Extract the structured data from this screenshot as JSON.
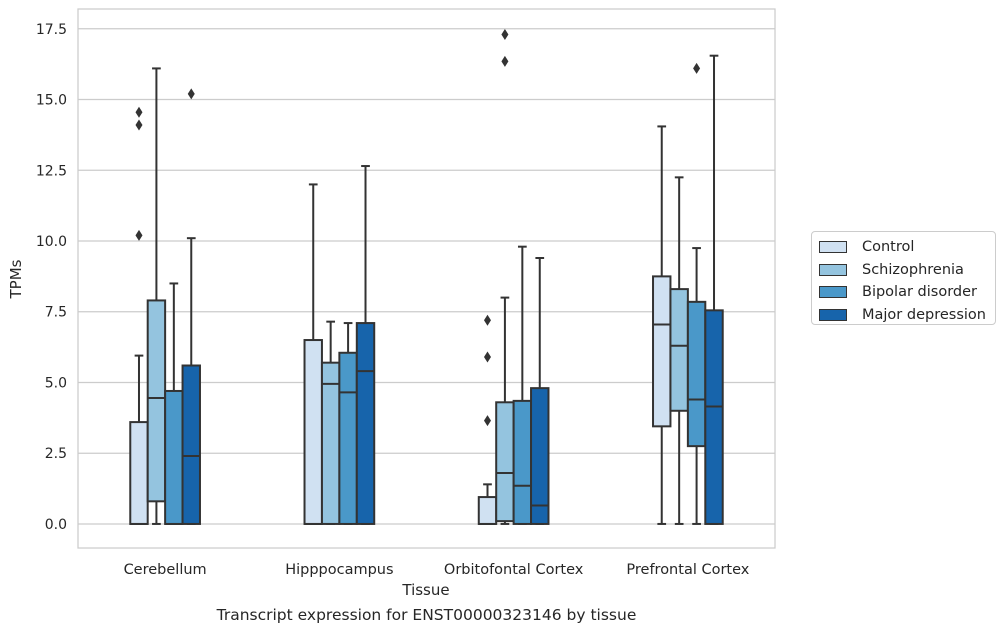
{
  "chart_data": {
    "type": "box",
    "xlabel": "Tissue",
    "ylabel": "TPMs",
    "ylim": [
      -0.85,
      18.2
    ],
    "yticks": [
      0.0,
      2.5,
      5.0,
      7.5,
      10.0,
      12.5,
      15.0,
      17.5
    ],
    "ytick_labels": [
      "0.0",
      "2.5",
      "5.0",
      "7.5",
      "10.0",
      "12.5",
      "15.0",
      "17.5"
    ],
    "grid": "horizontal",
    "legend_position": "outside-right",
    "categories": [
      "Cerebellum",
      "Hipppocampus",
      "Orbitofontal Cortex",
      "Prefrontal Cortex"
    ],
    "series": [
      {
        "name": "Control",
        "color": "#d0e1f2",
        "boxes": [
          {
            "whislo": 0.0,
            "q1": 0.0,
            "med": 0.0,
            "q3": 3.6,
            "whishi": 5.95,
            "fliers": [
              10.2,
              14.1,
              14.55
            ]
          },
          {
            "whislo": 0.0,
            "q1": 0.0,
            "med": 0.0,
            "q3": 6.5,
            "whishi": 12.0,
            "fliers": []
          },
          {
            "whislo": 0.0,
            "q1": 0.0,
            "med": 0.0,
            "q3": 0.95,
            "whishi": 1.4,
            "fliers": [
              3.65,
              5.9,
              7.2
            ]
          },
          {
            "whislo": 0.0,
            "q1": 3.45,
            "med": 7.05,
            "q3": 8.75,
            "whishi": 14.05,
            "fliers": []
          }
        ]
      },
      {
        "name": "Schizophrenia",
        "color": "#94c4df",
        "boxes": [
          {
            "whislo": 0.0,
            "q1": 0.8,
            "med": 4.45,
            "q3": 7.9,
            "whishi": 16.1,
            "fliers": []
          },
          {
            "whislo": 0.0,
            "q1": 0.0,
            "med": 4.95,
            "q3": 5.7,
            "whishi": 7.15,
            "fliers": []
          },
          {
            "whislo": 0.0,
            "q1": 0.1,
            "med": 1.8,
            "q3": 4.3,
            "whishi": 8.0,
            "fliers": [
              16.35,
              17.3
            ]
          },
          {
            "whislo": 0.0,
            "q1": 4.0,
            "med": 6.3,
            "q3": 8.3,
            "whishi": 12.25,
            "fliers": []
          }
        ]
      },
      {
        "name": "Bipolar disorder",
        "color": "#4a98c9",
        "boxes": [
          {
            "whislo": 0.0,
            "q1": 0.0,
            "med": 0.0,
            "q3": 4.7,
            "whishi": 8.5,
            "fliers": []
          },
          {
            "whislo": 0.0,
            "q1": 0.0,
            "med": 4.65,
            "q3": 6.05,
            "whishi": 7.1,
            "fliers": []
          },
          {
            "whislo": 0.0,
            "q1": 0.0,
            "med": 1.35,
            "q3": 4.35,
            "whishi": 9.8,
            "fliers": []
          },
          {
            "whislo": 0.0,
            "q1": 2.75,
            "med": 4.4,
            "q3": 7.85,
            "whishi": 9.75,
            "fliers": [
              16.1
            ]
          }
        ]
      },
      {
        "name": "Major depression",
        "color": "#1764ab",
        "boxes": [
          {
            "whislo": 0.0,
            "q1": 0.0,
            "med": 2.4,
            "q3": 5.6,
            "whishi": 10.1,
            "fliers": [
              15.2
            ]
          },
          {
            "whislo": 0.0,
            "q1": 0.0,
            "med": 5.4,
            "q3": 7.1,
            "whishi": 12.65,
            "fliers": []
          },
          {
            "whislo": 0.0,
            "q1": 0.0,
            "med": 0.65,
            "q3": 4.8,
            "whishi": 9.4,
            "fliers": []
          },
          {
            "whislo": 0.0,
            "q1": 0.0,
            "med": 4.15,
            "q3": 7.55,
            "whishi": 16.55,
            "fliers": []
          }
        ]
      }
    ]
  },
  "caption": "Transcript expression for ENST00000323146 by tissue"
}
